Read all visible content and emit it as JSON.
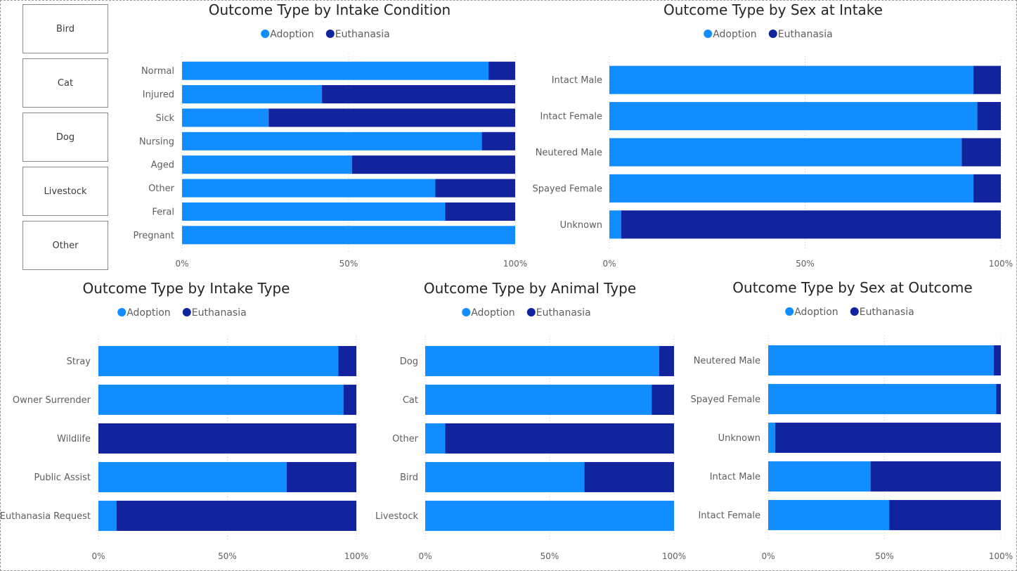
{
  "slicer": {
    "items": [
      {
        "label": "Bird"
      },
      {
        "label": "Cat"
      },
      {
        "label": "Dog"
      },
      {
        "label": "Livestock"
      },
      {
        "label": "Other"
      }
    ]
  },
  "colors": {
    "adoption": "#118dff",
    "euthanasia": "#12239e",
    "gridline": "#c8c6c4"
  },
  "chart_data": [
    {
      "id": "intake-condition",
      "type": "bar",
      "orientation": "horizontal",
      "stacking": "100%",
      "title": "Outcome Type by Intake Condition",
      "legend": {
        "position": "top-center",
        "items": [
          "Adoption",
          "Euthanasia"
        ]
      },
      "categories": [
        "Normal",
        "Injured",
        "Sick",
        "Nursing",
        "Aged",
        "Other",
        "Feral",
        "Pregnant"
      ],
      "series": [
        {
          "name": "Adoption",
          "values": [
            92,
            42,
            26,
            90,
            51,
            76,
            79,
            100
          ]
        },
        {
          "name": "Euthanasia",
          "values": [
            8,
            58,
            74,
            10,
            49,
            24,
            21,
            0
          ]
        }
      ],
      "xticks": [
        "0%",
        "50%",
        "100%"
      ],
      "xlim": [
        0,
        100
      ],
      "grid": true
    },
    {
      "id": "sex-at-intake",
      "type": "bar",
      "orientation": "horizontal",
      "stacking": "100%",
      "title": "Outcome Type by Sex at Intake",
      "legend": {
        "position": "top-center",
        "items": [
          "Adoption",
          "Euthanasia"
        ]
      },
      "categories": [
        "Intact Male",
        "Intact Female",
        "Neutered Male",
        "Spayed Female",
        "Unknown"
      ],
      "series": [
        {
          "name": "Adoption",
          "values": [
            93,
            94,
            90,
            93,
            3
          ]
        },
        {
          "name": "Euthanasia",
          "values": [
            7,
            6,
            10,
            7,
            97
          ]
        }
      ],
      "xticks": [
        "0%",
        "50%",
        "100%"
      ],
      "xlim": [
        0,
        100
      ],
      "grid": true
    },
    {
      "id": "intake-type",
      "type": "bar",
      "orientation": "horizontal",
      "stacking": "100%",
      "title": "Outcome Type by Intake Type",
      "legend": {
        "position": "top-center",
        "items": [
          "Adoption",
          "Euthanasia"
        ]
      },
      "categories": [
        "Stray",
        "Owner Surrender",
        "Wildlife",
        "Public Assist",
        "Euthanasia Request"
      ],
      "series": [
        {
          "name": "Adoption",
          "values": [
            93,
            95,
            0,
            73,
            7
          ]
        },
        {
          "name": "Euthanasia",
          "values": [
            7,
            5,
            100,
            27,
            93
          ]
        }
      ],
      "xticks": [
        "0%",
        "50%",
        "100%"
      ],
      "xlim": [
        0,
        100
      ],
      "grid": true
    },
    {
      "id": "animal-type",
      "type": "bar",
      "orientation": "horizontal",
      "stacking": "100%",
      "title": "Outcome Type by Animal Type",
      "legend": {
        "position": "top-center",
        "items": [
          "Adoption",
          "Euthanasia"
        ]
      },
      "categories": [
        "Dog",
        "Cat",
        "Other",
        "Bird",
        "Livestock"
      ],
      "series": [
        {
          "name": "Adoption",
          "values": [
            94,
            91,
            8,
            64,
            100
          ]
        },
        {
          "name": "Euthanasia",
          "values": [
            6,
            9,
            92,
            36,
            0
          ]
        }
      ],
      "xticks": [
        "0%",
        "50%",
        "100%"
      ],
      "xlim": [
        0,
        100
      ],
      "grid": true
    },
    {
      "id": "sex-at-outcome",
      "type": "bar",
      "orientation": "horizontal",
      "stacking": "100%",
      "title": "Outcome Type by Sex at Outcome",
      "legend": {
        "position": "top-center",
        "items": [
          "Adoption",
          "Euthanasia"
        ]
      },
      "categories": [
        "Neutered Male",
        "Spayed Female",
        "Unknown",
        "Intact Male",
        "Intact Female"
      ],
      "series": [
        {
          "name": "Adoption",
          "values": [
            97,
            98,
            3,
            44,
            52
          ]
        },
        {
          "name": "Euthanasia",
          "values": [
            3,
            2,
            97,
            56,
            48
          ]
        }
      ],
      "xticks": [
        "0%",
        "50%",
        "100%"
      ],
      "xlim": [
        0,
        100
      ],
      "grid": true
    }
  ]
}
